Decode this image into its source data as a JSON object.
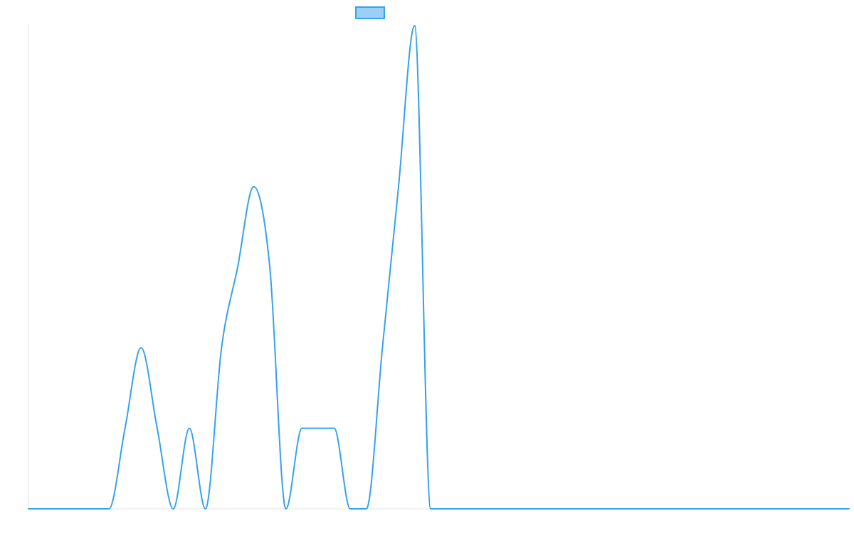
{
  "chart_data": {
    "type": "line",
    "title": "",
    "xlabel": "",
    "ylabel": "",
    "x": [
      0,
      1,
      2,
      3,
      4,
      5,
      6,
      7,
      8,
      9,
      10,
      11,
      12,
      13,
      14,
      15,
      16,
      17,
      18,
      19,
      20,
      21,
      22,
      23,
      24,
      25,
      26,
      27,
      28,
      29,
      30,
      31,
      32,
      33,
      34,
      35,
      36,
      37,
      38,
      39,
      40,
      41,
      42,
      43,
      44,
      45,
      46,
      47,
      48,
      49,
      50,
      51
    ],
    "series": [
      {
        "name": "",
        "color": "#36a2eb",
        "fill": "#9ad0f5",
        "values": [
          0,
          0,
          0,
          0,
          0,
          0,
          1,
          2,
          1,
          0,
          1,
          0,
          2,
          3,
          4,
          3,
          0,
          1,
          1,
          1,
          0,
          0,
          2,
          4,
          6,
          0,
          0,
          0,
          0,
          0,
          0,
          0,
          0,
          0,
          0,
          0,
          0,
          0,
          0,
          0,
          0,
          0,
          0,
          0,
          0,
          0,
          0,
          0,
          0,
          0,
          0,
          0
        ]
      }
    ],
    "ylim": [
      0,
      6
    ],
    "grid": false,
    "legend": {
      "position": "top",
      "entries": [
        {
          "label": "",
          "color": "#36a2eb"
        }
      ]
    }
  }
}
